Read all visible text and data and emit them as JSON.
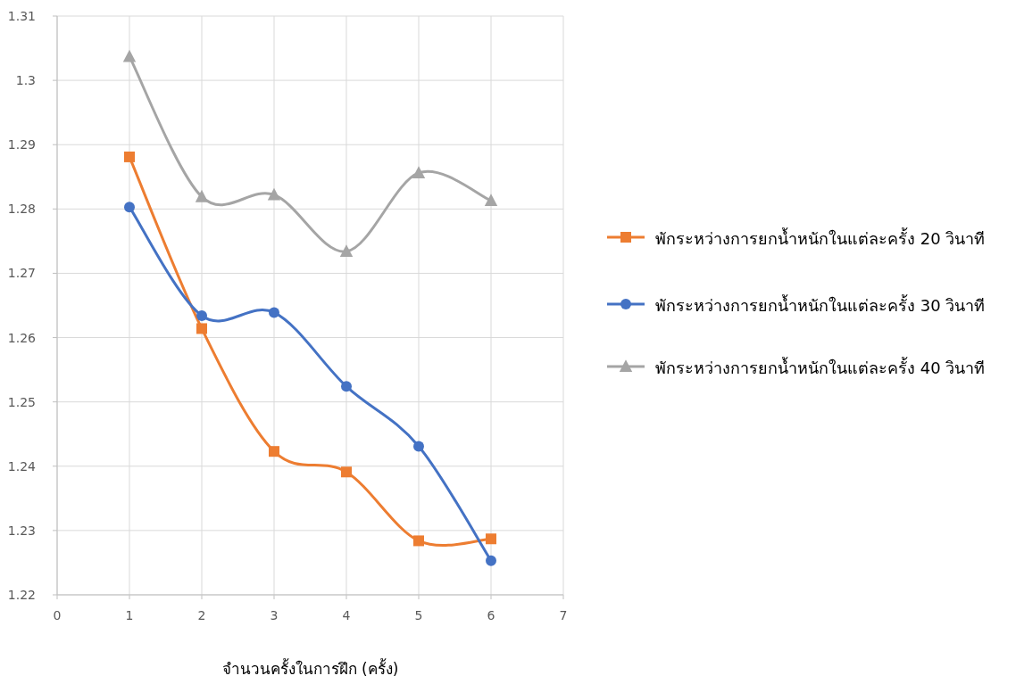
{
  "chart_data": {
    "type": "line",
    "xlabel": "จำนวนครั้งในการฝึก (ครั้ง)",
    "x": [
      1,
      2,
      3,
      4,
      5,
      6
    ],
    "series": [
      {
        "name": "พักระหว่างการยกน้ำหนักในแต่ละครั้ง 20 วินาที",
        "color": "#ed7d31",
        "marker": "square",
        "values": [
          1.2881,
          1.2614,
          1.2423,
          1.2391,
          1.2284,
          1.2287
        ]
      },
      {
        "name": "พักระหว่างการยกน้ำหนักในแต่ละครั้ง 30 วินาที",
        "color": "#4472c4",
        "marker": "circle",
        "values": [
          1.2803,
          1.2634,
          1.2639,
          1.2524,
          1.2431,
          1.2253
        ]
      },
      {
        "name": "พักระหว่างการยกน้ำหนักในแต่ละครั้ง 40 วินาที",
        "color": "#a5a5a5",
        "marker": "triangle",
        "values": [
          1.3037,
          1.2819,
          1.2822,
          1.2734,
          1.2856,
          1.2813
        ]
      }
    ],
    "xlim": [
      0,
      7
    ],
    "xticks": [
      0,
      1,
      2,
      3,
      4,
      5,
      6,
      7
    ],
    "ylim": [
      1.22,
      1.31
    ],
    "yticks": [
      1.22,
      1.23,
      1.24,
      1.25,
      1.26,
      1.27,
      1.28,
      1.29,
      1.3,
      1.31
    ],
    "grid": true,
    "legend": "right",
    "line_style": "solid"
  }
}
